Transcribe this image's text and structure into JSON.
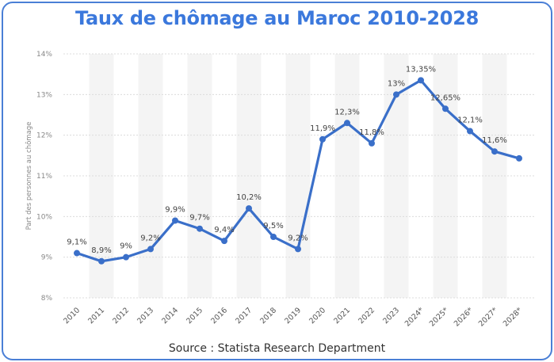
{
  "title": "Taux de chômage au Maroc 2010-2028",
  "source": "Source : Statista Research Department",
  "colors": {
    "line": "#3a6fc9",
    "title": "#3b78dc",
    "border": "#4a7fd6",
    "grid": "#dcdcdc",
    "band": "#f4f4f4"
  },
  "chart_data": {
    "type": "line",
    "title": "Taux de chômage au Maroc 2010-2028",
    "xlabel": "",
    "ylabel": "Part des personnes au chômage",
    "ylim": [
      8,
      14
    ],
    "yticks": [
      8,
      9,
      10,
      11,
      12,
      13,
      14
    ],
    "ytick_labels": [
      "8%",
      "9%",
      "10%",
      "11%",
      "12%",
      "13%",
      "14%"
    ],
    "categories": [
      "2010",
      "2011",
      "2012",
      "2013",
      "2014",
      "2015",
      "2016",
      "2017",
      "2018",
      "2019",
      "2020",
      "2021",
      "2022",
      "2023",
      "2024*",
      "2025*",
      "2026*",
      "2027*",
      "2028*"
    ],
    "values": [
      9.1,
      8.9,
      9.0,
      9.2,
      9.9,
      9.7,
      9.4,
      10.2,
      9.5,
      9.2,
      11.9,
      12.3,
      11.8,
      13.0,
      13.35,
      12.65,
      12.1,
      11.6,
      11.43
    ],
    "data_labels": [
      "9,1%",
      "8,9%",
      "9%",
      "9,2%",
      "9,9%",
      "9,7%",
      "9,4%",
      "10,2%",
      "9,5%",
      "9,2%",
      "11,9%",
      "12,3%",
      "11,8%",
      "13%",
      "13,35%",
      "12,65%",
      "12,1%",
      "11,6%",
      null
    ],
    "grid": true,
    "legend": "none"
  }
}
